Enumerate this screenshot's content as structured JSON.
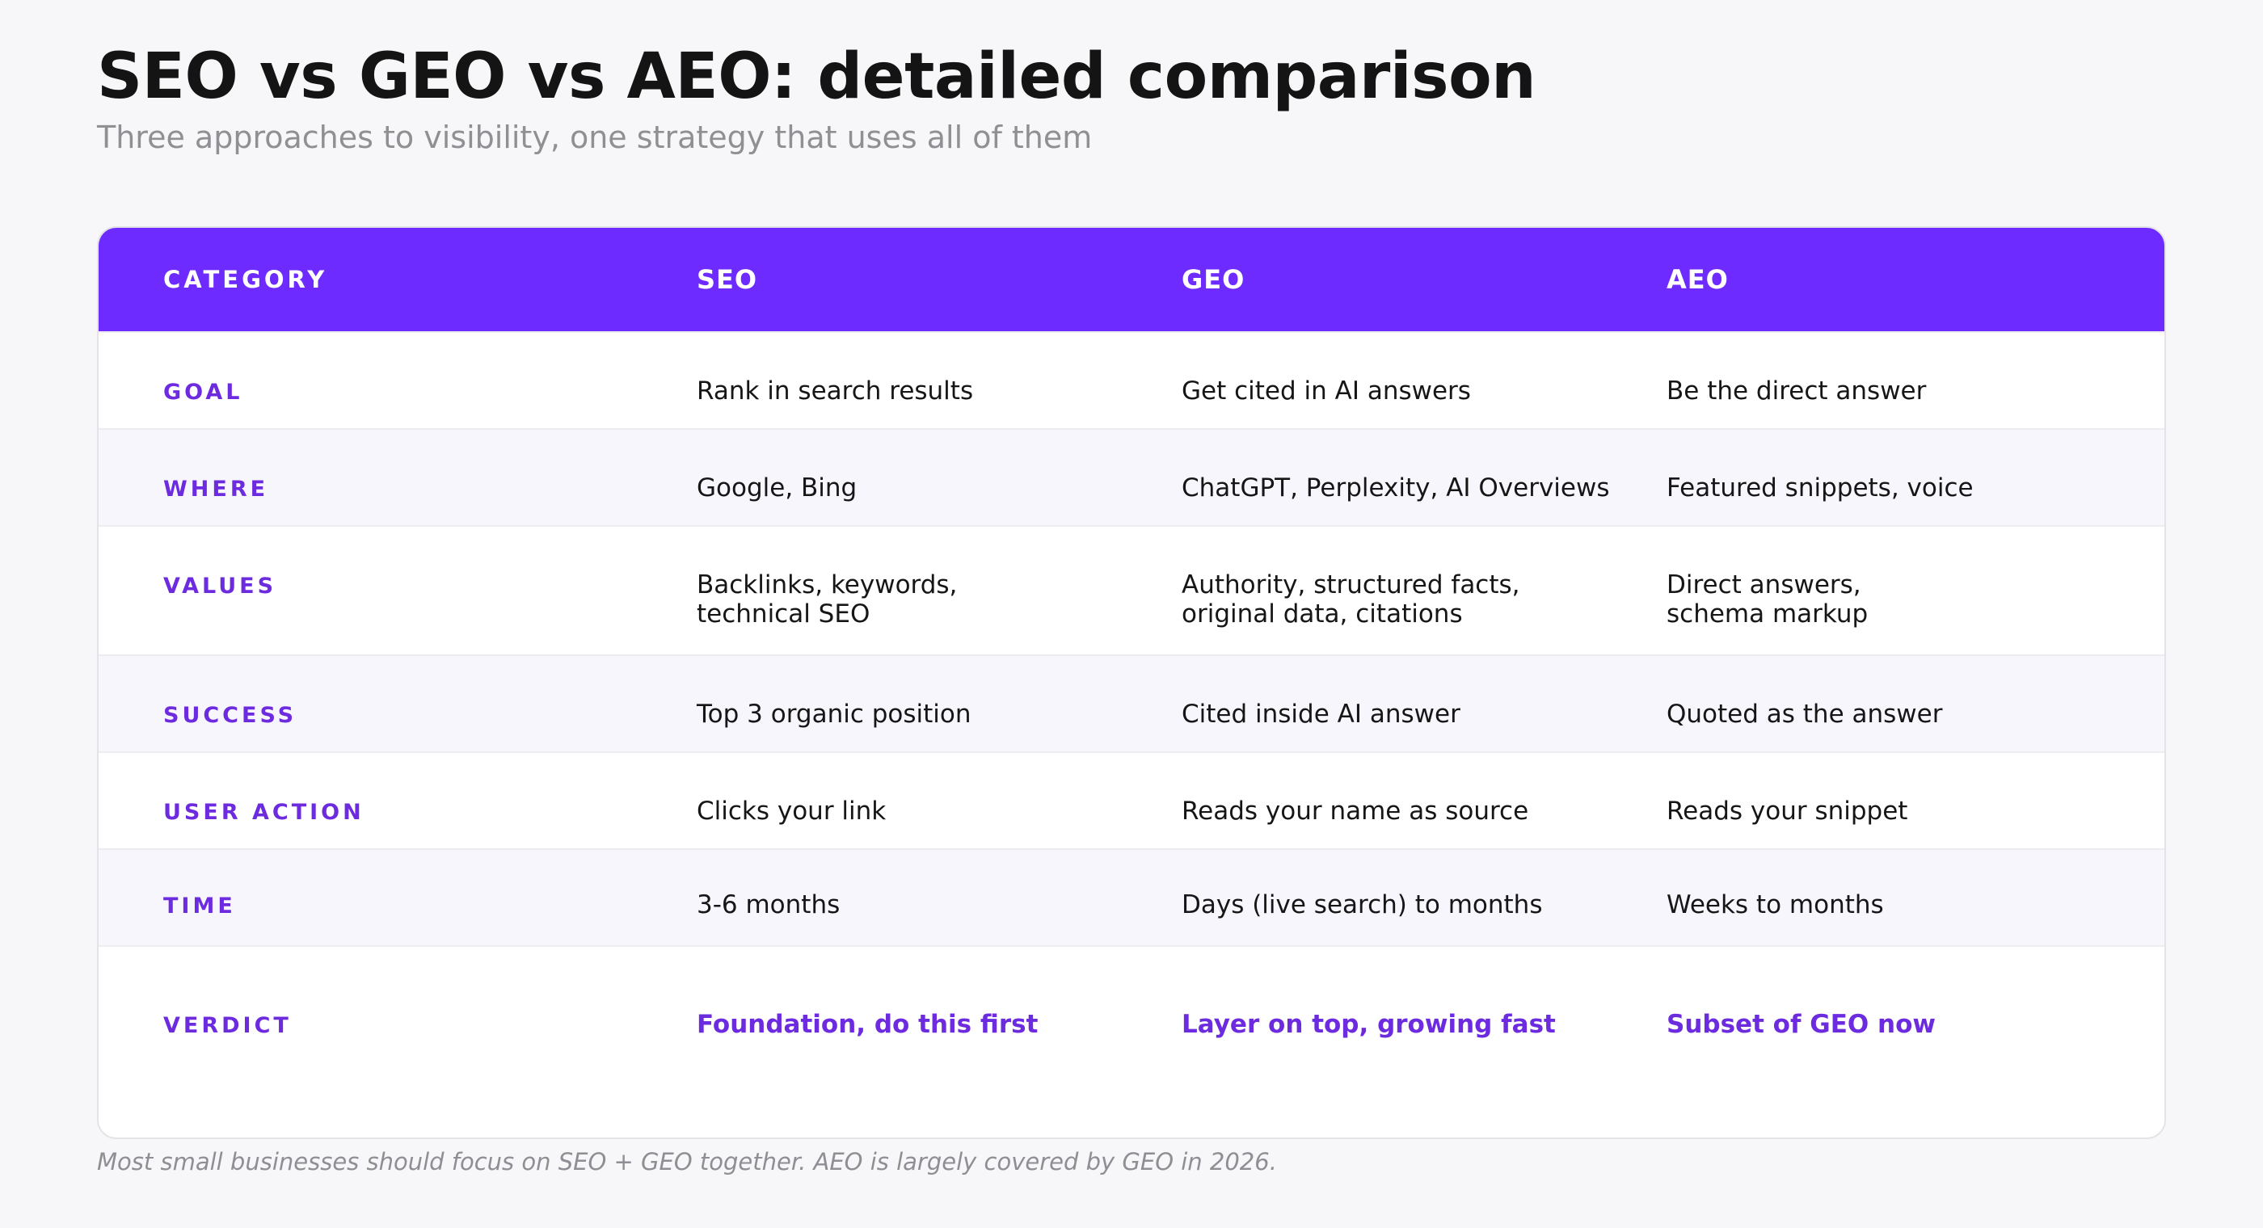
{
  "header": {
    "title": "SEO vs GEO vs AEO: detailed comparison",
    "subtitle": "Three approaches to visibility, one strategy that uses all of them"
  },
  "table": {
    "columns": [
      "CATEGORY",
      "SEO",
      "GEO",
      "AEO"
    ],
    "rows": [
      {
        "category": "GOAL",
        "seo": [
          "Rank in search results"
        ],
        "geo": [
          "Get cited in AI answers"
        ],
        "aeo": [
          "Be the direct answer"
        ]
      },
      {
        "category": "WHERE",
        "seo": [
          "Google, Bing"
        ],
        "geo": [
          "ChatGPT, Perplexity, AI Overviews"
        ],
        "aeo": [
          "Featured snippets, voice"
        ]
      },
      {
        "category": "VALUES",
        "seo": [
          "Backlinks, keywords,",
          "technical SEO"
        ],
        "geo": [
          "Authority, structured facts,",
          "original data, citations"
        ],
        "aeo": [
          "Direct answers,",
          "schema markup"
        ]
      },
      {
        "category": "SUCCESS",
        "seo": [
          "Top 3 organic position"
        ],
        "geo": [
          "Cited inside AI answer"
        ],
        "aeo": [
          "Quoted as the answer"
        ]
      },
      {
        "category": "USER ACTION",
        "seo": [
          "Clicks your link"
        ],
        "geo": [
          "Reads your name as source"
        ],
        "aeo": [
          "Reads your snippet"
        ]
      },
      {
        "category": "TIME",
        "seo": [
          "3-6 months"
        ],
        "geo": [
          "Days (live search) to months"
        ],
        "aeo": [
          "Weeks to months"
        ]
      }
    ],
    "verdict": {
      "category": "VERDICT",
      "seo": "Foundation, do this first",
      "geo": "Layer on top, growing fast",
      "aeo": "Subset of GEO now"
    }
  },
  "footnote": "Most small businesses should focus on SEO + GEO together. AEO is largely covered by GEO in 2026.",
  "colors": {
    "accent": "#6d2bff",
    "accent_text": "#6d2be0",
    "alt_row": "#f8f6fd",
    "background": "#f7f7f9"
  }
}
